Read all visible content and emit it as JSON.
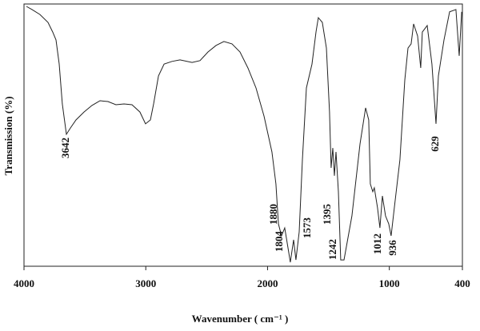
{
  "chart_data": {
    "type": "line",
    "y_label": "Transmission (%)",
    "x_label": "Wavenumber ( cm⁻¹ )",
    "xlim": [
      4000,
      400
    ],
    "xticks": [
      4000,
      3000,
      2000,
      1000,
      400
    ],
    "ylim": [
      0,
      100
    ],
    "grid": false,
    "series": [
      {
        "color": "#222222",
        "x": [
          3980,
          3934,
          3869,
          3803,
          3764,
          3737,
          3711,
          3685,
          3652,
          3619,
          3573,
          3507,
          3442,
          3376,
          3310,
          3245,
          3179,
          3113,
          3048,
          3002,
          2962,
          2936,
          2896,
          2850,
          2785,
          2719,
          2620,
          2555,
          2489,
          2423,
          2358,
          2292,
          2226,
          2161,
          2095,
          2029,
          1964,
          1931,
          1911,
          1885,
          1859,
          1832,
          1813,
          1786,
          1767,
          1740,
          1714,
          1681,
          1635,
          1602,
          1583,
          1550,
          1517,
          1491,
          1478,
          1464,
          1451,
          1438,
          1418,
          1399,
          1372,
          1307,
          1241,
          1195,
          1169,
          1156,
          1136,
          1123,
          1097,
          1077,
          1057,
          1031,
          1005,
          985,
          959,
          913,
          873,
          847,
          821,
          801,
          768,
          742,
          729,
          689,
          650,
          617,
          597,
          551,
          505,
          453,
          426,
          406
        ],
        "values": [
          99.1,
          97.9,
          96.0,
          93.0,
          89.3,
          86.3,
          77.1,
          61.9,
          50.3,
          52.7,
          55.8,
          58.8,
          61.3,
          63.1,
          62.8,
          61.6,
          61.9,
          61.6,
          58.8,
          54.3,
          55.8,
          61.9,
          72.6,
          77.1,
          78.1,
          78.7,
          77.7,
          78.4,
          81.7,
          84.2,
          85.7,
          84.8,
          81.7,
          75.6,
          68.0,
          57.3,
          43.6,
          31.4,
          16.2,
          11.6,
          14.6,
          7.0,
          1.5,
          10.1,
          2.4,
          13.1,
          40.6,
          68.0,
          77.1,
          89.3,
          94.8,
          93.0,
          83.2,
          58.8,
          37.5,
          45.1,
          34.5,
          43.6,
          28.4,
          2.4,
          2.4,
          19.2,
          46.6,
          60.4,
          55.8,
          31.4,
          28.4,
          29.9,
          22.3,
          14.6,
          26.8,
          19.2,
          16.2,
          11.6,
          22.3,
          40.6,
          71.0,
          83.2,
          84.8,
          92.4,
          87.8,
          75.6,
          89.3,
          91.8,
          77.1,
          54.3,
          72.6,
          86.3,
          97.0,
          97.9,
          80.2,
          97.0
        ]
      }
    ],
    "annotations": [
      "3642",
      "1880",
      "1804",
      "1573",
      "1395",
      "1242",
      "1012",
      "936",
      "629"
    ]
  }
}
